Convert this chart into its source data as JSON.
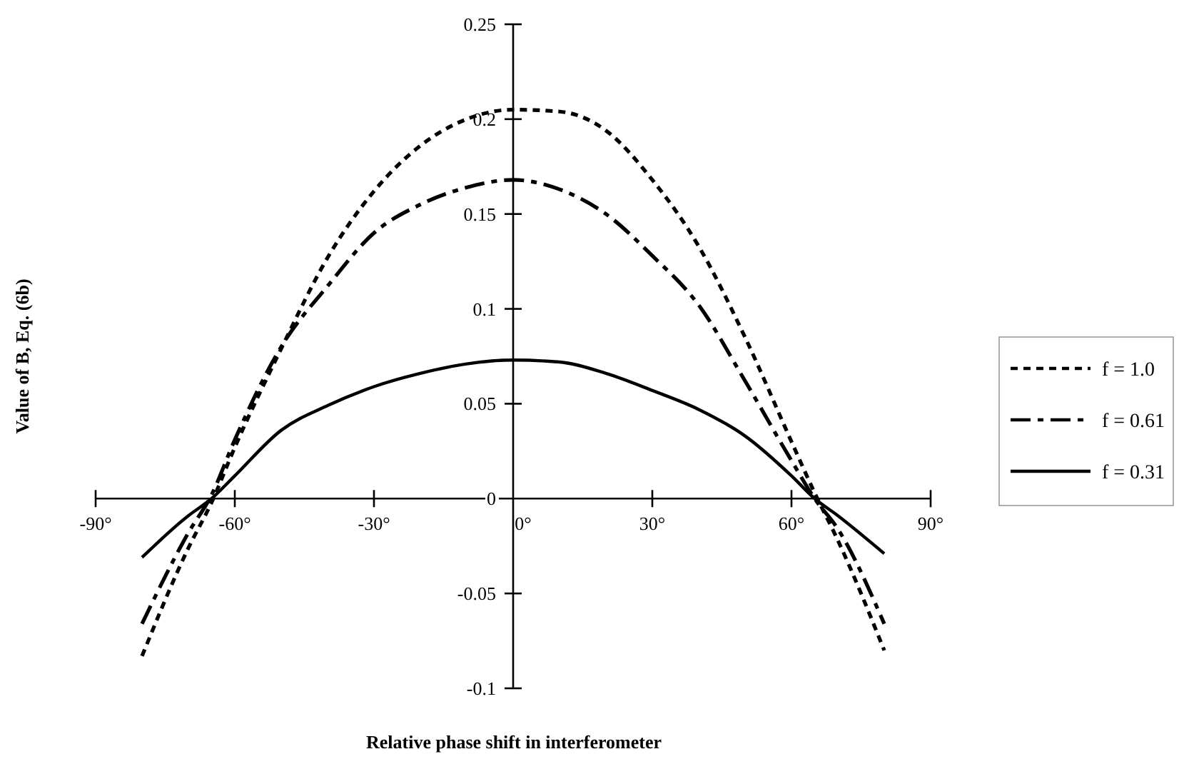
{
  "chart_data": {
    "type": "line",
    "xlabel": "Relative phase shift in interferometer",
    "ylabel": "Value of B, Eq. (6b)",
    "x": [
      -80,
      -70,
      -65,
      -60,
      -50,
      -40,
      -30,
      -20,
      -10,
      0,
      10,
      20,
      30,
      40,
      50,
      60,
      65,
      70,
      80
    ],
    "series": [
      {
        "name": "f = 1.0",
        "color": "#000000",
        "line_style": "dotted",
        "values": [
          -0.083,
          -0.026,
          -0.002,
          0.027,
          0.079,
          0.127,
          0.162,
          0.186,
          0.2,
          0.205,
          0.204,
          0.194,
          0.168,
          0.133,
          0.085,
          0.03,
          0.003,
          -0.022,
          -0.08
        ]
      },
      {
        "name": "f = 0.61",
        "color": "#000000",
        "line_style": "dashed",
        "values": [
          -0.066,
          -0.018,
          0.002,
          0.031,
          0.08,
          0.112,
          0.14,
          0.155,
          0.164,
          0.168,
          0.163,
          0.15,
          0.128,
          0.102,
          0.062,
          0.02,
          0.0,
          -0.016,
          -0.066
        ]
      },
      {
        "name": "f = 0.31",
        "color": "#000000",
        "line_style": "solid",
        "values": [
          -0.031,
          -0.009,
          0,
          0.012,
          0.036,
          0.049,
          0.059,
          0.066,
          0.071,
          0.073,
          0.072,
          0.066,
          0.057,
          0.047,
          0.033,
          0.012,
          0,
          -0.009,
          -0.029
        ]
      }
    ],
    "xlim": [
      -90,
      90
    ],
    "ylim": [
      -0.1,
      0.25
    ],
    "xticks": [
      {
        "value": -90,
        "label": "-90°"
      },
      {
        "value": -60,
        "label": "-60°"
      },
      {
        "value": -30,
        "label": "-30°"
      },
      {
        "value": 0,
        "label": "0°"
      },
      {
        "value": 30,
        "label": "30°"
      },
      {
        "value": 60,
        "label": "60°"
      },
      {
        "value": 90,
        "label": "90°"
      }
    ],
    "yticks": [
      -0.1,
      -0.05,
      0,
      0.05,
      0.1,
      0.15,
      0.2,
      0.25
    ],
    "grid": false,
    "legend": "right",
    "marker": "none"
  }
}
